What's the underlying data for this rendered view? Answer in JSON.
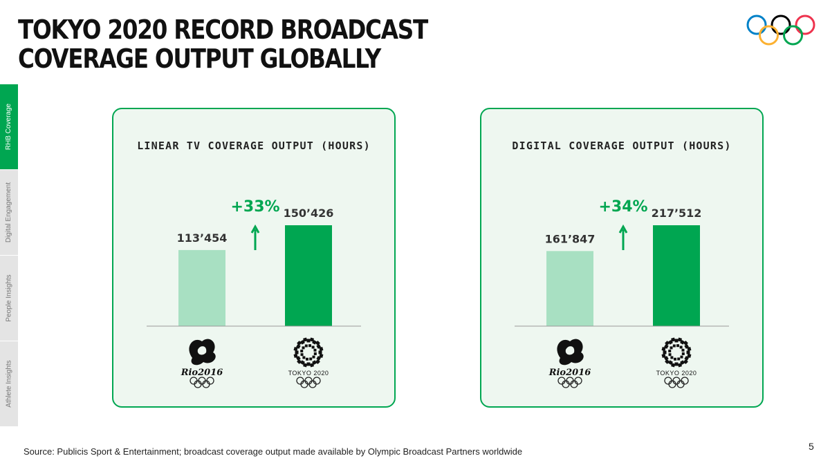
{
  "slide": {
    "title": "TOKYO 2020 RECORD BROADCAST COVERAGE OUTPUT GLOBALLY",
    "source": "Source: Publicis Sport & Entertainment; broadcast coverage output made available by Olympic Broadcast Partners worldwide",
    "page_number": "5"
  },
  "nav": {
    "items": [
      {
        "label": "RHB Coverage",
        "active": true
      },
      {
        "label": "Digital Engagement",
        "active": false
      },
      {
        "label": "People Insights",
        "active": false
      },
      {
        "label": "Athlete Insights",
        "active": false
      }
    ]
  },
  "colors": {
    "accent": "#00a651",
    "rio_bar": "#a8e0c2",
    "tokyo_bar": "#00a651",
    "panel_bg": "#eef7f0",
    "ring_blue": "#0081c8",
    "ring_yellow": "#fcb131",
    "ring_black": "#000000",
    "ring_green": "#00a651",
    "ring_red": "#ee334e"
  },
  "logos": {
    "rio": {
      "icon": "rio-2016-logo",
      "text": "Rio2016"
    },
    "tokyo": {
      "icon": "tokyo-2020-emblem",
      "text": "TOKYO 2020"
    }
  },
  "chart_data": [
    {
      "type": "bar",
      "title": "LINEAR TV COVERAGE OUTPUT (HOURS)",
      "categories": [
        "Rio 2016",
        "Tokyo 2020"
      ],
      "values": [
        113454,
        150426
      ],
      "value_labels": [
        "113’454",
        "150’426"
      ],
      "change_label": "+33%",
      "ylim": [
        0,
        150426
      ]
    },
    {
      "type": "bar",
      "title": "DIGITAL COVERAGE OUTPUT (HOURS)",
      "categories": [
        "Rio 2016",
        "Tokyo 2020"
      ],
      "values": [
        161847,
        217512
      ],
      "value_labels": [
        "161’847",
        "217’512"
      ],
      "change_label": "+34%",
      "ylim": [
        0,
        217512
      ]
    }
  ]
}
